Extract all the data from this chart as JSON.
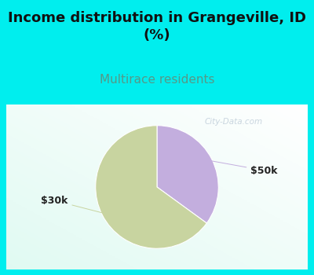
{
  "title": "Income distribution in Grangeville, ID\n(%)",
  "subtitle": "Multirace residents",
  "slices": [
    {
      "label": "$50k",
      "value": 35,
      "color": "#C3AEDE"
    },
    {
      "label": "$30k",
      "value": 65,
      "color": "#C8D4A0"
    }
  ],
  "bg_color": "#00EEEE",
  "title_fontsize": 13,
  "subtitle_fontsize": 11,
  "subtitle_color": "#559988",
  "label_fontsize": 9,
  "start_angle": 90,
  "annotation_color": "#222222",
  "watermark_color": "#aabbcc",
  "watermark_alpha": 0.6
}
